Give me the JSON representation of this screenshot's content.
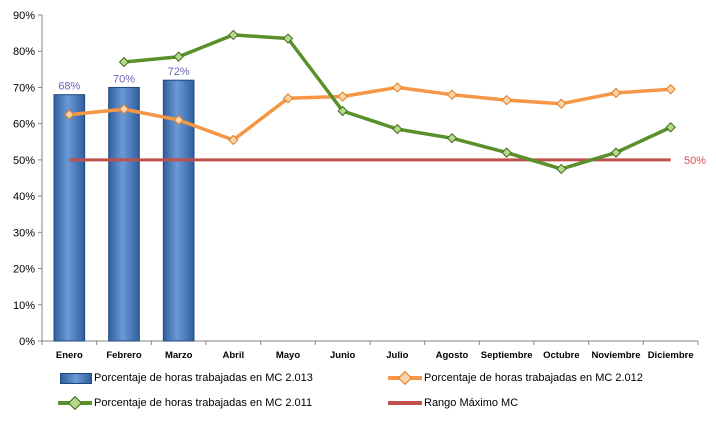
{
  "chart_data": {
    "type": "bar",
    "categories": [
      "Enero",
      "Febrero",
      "Marzo",
      "Abril",
      "Mayo",
      "Junio",
      "Julio",
      "Agosto",
      "Septiembre",
      "Octubre",
      "Noviembre",
      "Diciembre"
    ],
    "y_ticks": [
      "0%",
      "10%",
      "20%",
      "30%",
      "40%",
      "50%",
      "60%",
      "70%",
      "80%",
      "90%"
    ],
    "ylim": [
      0,
      90
    ],
    "series": [
      {
        "name": "Porcentaje de horas trabajadas en MC 2.013",
        "type": "bar",
        "color": "#4f81bd",
        "values": [
          68,
          70,
          72,
          null,
          null,
          null,
          null,
          null,
          null,
          null,
          null,
          null
        ],
        "data_labels": [
          "68%",
          "70%",
          "72%"
        ]
      },
      {
        "name": "Porcentaje de horas trabajadas en MC 2.012",
        "type": "line",
        "color": "#f79646",
        "values": [
          62.5,
          64,
          61,
          55.5,
          67,
          67.5,
          70,
          68,
          66.5,
          65.5,
          68.5,
          69.5
        ]
      },
      {
        "name": "Porcentaje de horas trabajadas en MC 2.011",
        "type": "line",
        "color": "#5a8f29",
        "values": [
          null,
          77,
          78.5,
          84.5,
          83.5,
          63.5,
          58.5,
          56,
          52,
          47.5,
          52,
          59
        ]
      },
      {
        "name": "Rango Máximo MC",
        "type": "line",
        "color": "#c0504d",
        "values": [
          50,
          50,
          50,
          50,
          50,
          50,
          50,
          50,
          50,
          50,
          50,
          50
        ],
        "end_label": "50%"
      }
    ],
    "grid": false,
    "legend_position": "bottom"
  }
}
